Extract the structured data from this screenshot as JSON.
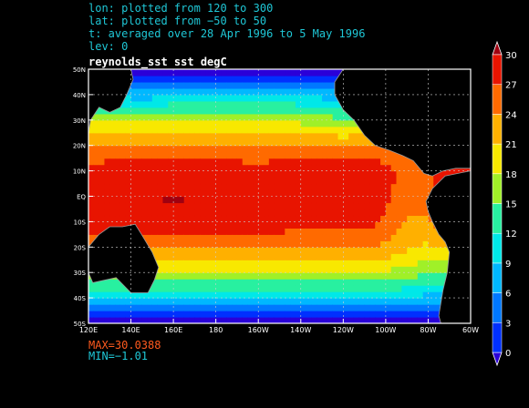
{
  "header": {
    "line1": "lon: plotted from 120 to 300",
    "line2": "lat: plotted from −50 to 50",
    "line3": "t: averaged over 28 Apr 1996 to 5 May 1996",
    "line4": "lev: 0"
  },
  "stats": {
    "max": "MAX=30.0388",
    "min": "MIN=−1.01"
  },
  "colors": {
    "header_text": "#1fc7d6",
    "max_text": "#ff5a1e",
    "min_text": "#1fc7d6"
  },
  "chart_data": {
    "type": "heatmap",
    "title": "reynolds_sst  sst degC",
    "x_ticks": [
      "120E",
      "140E",
      "160E",
      "180",
      "160W",
      "140W",
      "120W",
      "100W",
      "80W",
      "60W"
    ],
    "y_ticks": [
      "50N",
      "40N",
      "30N",
      "20N",
      "10N",
      "EQ",
      "10S",
      "20S",
      "30S",
      "40S",
      "50S"
    ],
    "xlim": [
      120,
      300
    ],
    "ylim": [
      -50,
      50
    ],
    "grid": true,
    "colorbar": {
      "ticks": [
        "0",
        "3",
        "6",
        "9",
        "12",
        "15",
        "18",
        "21",
        "24",
        "27",
        "30"
      ],
      "levels": [
        0,
        3,
        6,
        9,
        12,
        15,
        18,
        21,
        24,
        27,
        30
      ],
      "colors": [
        "#2b00d8",
        "#0030ff",
        "#0078ff",
        "#00b8ff",
        "#00e8e8",
        "#28f0a0",
        "#a0f028",
        "#f8e800",
        "#ffb000",
        "#ff6a00",
        "#e81400",
        "#a00010"
      ],
      "placement": "right"
    },
    "max": 30.0388,
    "min": -1.01
  }
}
